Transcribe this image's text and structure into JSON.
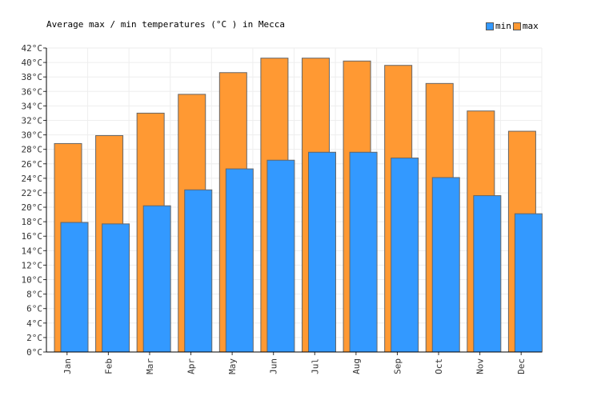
{
  "chart_data": {
    "type": "bar",
    "title": "Average max / min temperatures (°C ) in Mecca",
    "categories": [
      "Jan",
      "Feb",
      "Mar",
      "Apr",
      "May",
      "Jun",
      "Jul",
      "Aug",
      "Sep",
      "Oct",
      "Nov",
      "Dec"
    ],
    "series": [
      {
        "name": "max",
        "color": "#ff9933",
        "values": [
          28.8,
          29.9,
          33.0,
          35.6,
          38.6,
          40.6,
          40.6,
          40.2,
          39.6,
          37.1,
          33.3,
          30.5
        ]
      },
      {
        "name": "min",
        "color": "#3399ff",
        "values": [
          17.9,
          17.7,
          20.2,
          22.4,
          25.3,
          26.5,
          27.6,
          27.6,
          26.8,
          24.1,
          21.6,
          19.1
        ]
      }
    ],
    "ylim": [
      0,
      42
    ],
    "ytick_step": 2,
    "ytick_suffix": "°C",
    "grid": true,
    "legend_position": "top-right",
    "legend": [
      {
        "name": "min",
        "color": "#3399ff"
      },
      {
        "name": "max",
        "color": "#ff9933"
      }
    ]
  }
}
